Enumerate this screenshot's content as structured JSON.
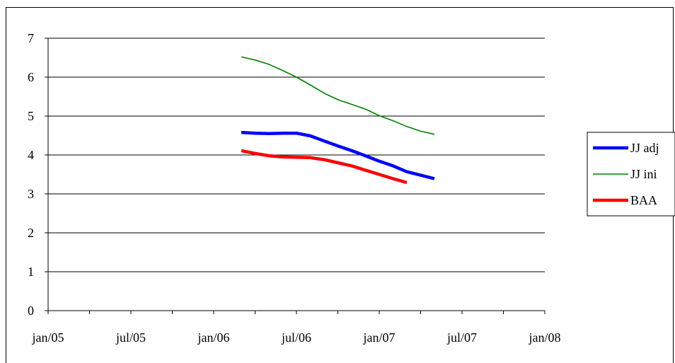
{
  "chart_data": {
    "type": "line",
    "title": "",
    "xlabel": "",
    "ylabel": "",
    "ylim": [
      0,
      7
    ],
    "yticks": [
      "0",
      "1",
      "2",
      "3",
      "4",
      "5",
      "6",
      "7"
    ],
    "xticks": [
      "jan/05",
      "jul/05",
      "jan/06",
      "jul/06",
      "jan/07",
      "jul/07",
      "jan/08"
    ],
    "xtick_dates": [
      "2005-01",
      "2005-07",
      "2006-01",
      "2006-07",
      "2007-01",
      "2007-07",
      "2008-01"
    ],
    "grid": "horizontal",
    "legend_position": "right",
    "series": [
      {
        "name": "JJ adj",
        "color": "#0000ff",
        "stroke": "thick",
        "x": [
          "2006-03",
          "2006-04",
          "2006-05",
          "2006-06",
          "2006-07",
          "2006-08",
          "2006-09",
          "2006-10",
          "2006-11",
          "2006-12",
          "2007-01",
          "2007-02",
          "2007-03",
          "2007-04",
          "2007-05"
        ],
        "values": [
          4.58,
          4.56,
          4.55,
          4.56,
          4.56,
          4.49,
          4.36,
          4.23,
          4.11,
          3.98,
          3.84,
          3.72,
          3.57,
          3.48,
          3.39
        ]
      },
      {
        "name": "JJ ini",
        "color": "#008000",
        "stroke": "thin",
        "x": [
          "2006-03",
          "2006-04",
          "2006-05",
          "2006-06",
          "2006-07",
          "2006-08",
          "2006-09",
          "2006-10",
          "2006-11",
          "2006-12",
          "2007-01",
          "2007-02",
          "2007-03",
          "2007-04",
          "2007-05"
        ],
        "values": [
          6.52,
          6.44,
          6.33,
          6.17,
          6.0,
          5.8,
          5.59,
          5.42,
          5.3,
          5.18,
          5.01,
          4.88,
          4.73,
          4.61,
          4.53
        ]
      },
      {
        "name": "BAA",
        "color": "#ff0000",
        "stroke": "thick",
        "x": [
          "2006-03",
          "2006-04",
          "2006-05",
          "2006-06",
          "2006-07",
          "2006-08",
          "2006-09",
          "2006-10",
          "2006-11",
          "2006-12",
          "2007-01",
          "2007-02",
          "2007-03"
        ],
        "values": [
          4.11,
          4.04,
          3.98,
          3.95,
          3.94,
          3.93,
          3.88,
          3.8,
          3.72,
          3.61,
          3.5,
          3.39,
          3.29
        ]
      }
    ]
  }
}
